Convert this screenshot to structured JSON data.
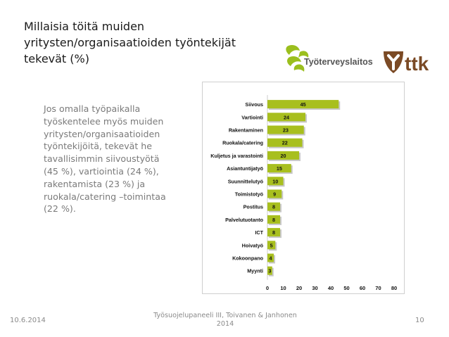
{
  "slide": {
    "title_line1": "Millaisia töitä muiden",
    "title_line2": "yritysten/organisaatioiden työntekijät",
    "title_line3": "tekevät (%)",
    "body_lines": [
      "Jos omalla työpaikalla",
      "työskentelee myös muiden",
      "yritysten/organisaatioiden",
      "työntekijöitä, tekevät he",
      "tavallisimmin siivoustyötä",
      "(45 %), vartiointia (24 %),",
      "rakentamista (23 %) ja",
      "ruokala/catering –toimintaa",
      "(22 %)."
    ]
  },
  "logos": {
    "ttl_name": "Työterveyslaitos",
    "ttk_name": "ttk"
  },
  "footer": {
    "date": "10.6.2014",
    "center_line1": "Työsuojelupaneeli III, Toivanen & Janhonen",
    "center_line2": "2014",
    "page_number": "10"
  },
  "colors": {
    "bar": "#a8bf1e",
    "ttl_green": "#9bbf1e",
    "ttk_brown": "#7b4a25"
  },
  "chart_data": {
    "type": "bar",
    "orientation": "horizontal",
    "categories": [
      "Siivous",
      "Vartiointi",
      "Rakentaminen",
      "Ruokala/catering",
      "Kuljetus ja varastointi",
      "Asiantuntijatyö",
      "Suunnittelutyö",
      "Toimistotyö",
      "Postitus",
      "Palvelutuotanto",
      "ICT",
      "Hoivatyö",
      "Kokoonpano",
      "Myynti"
    ],
    "values": [
      45,
      24,
      23,
      22,
      20,
      15,
      10,
      9,
      8,
      8,
      8,
      5,
      4,
      3
    ],
    "xlim": [
      0,
      80
    ],
    "xticks": [
      0,
      10,
      20,
      30,
      40,
      50,
      60,
      70,
      80
    ],
    "title": "",
    "xlabel": "",
    "ylabel": "",
    "grid": false
  }
}
